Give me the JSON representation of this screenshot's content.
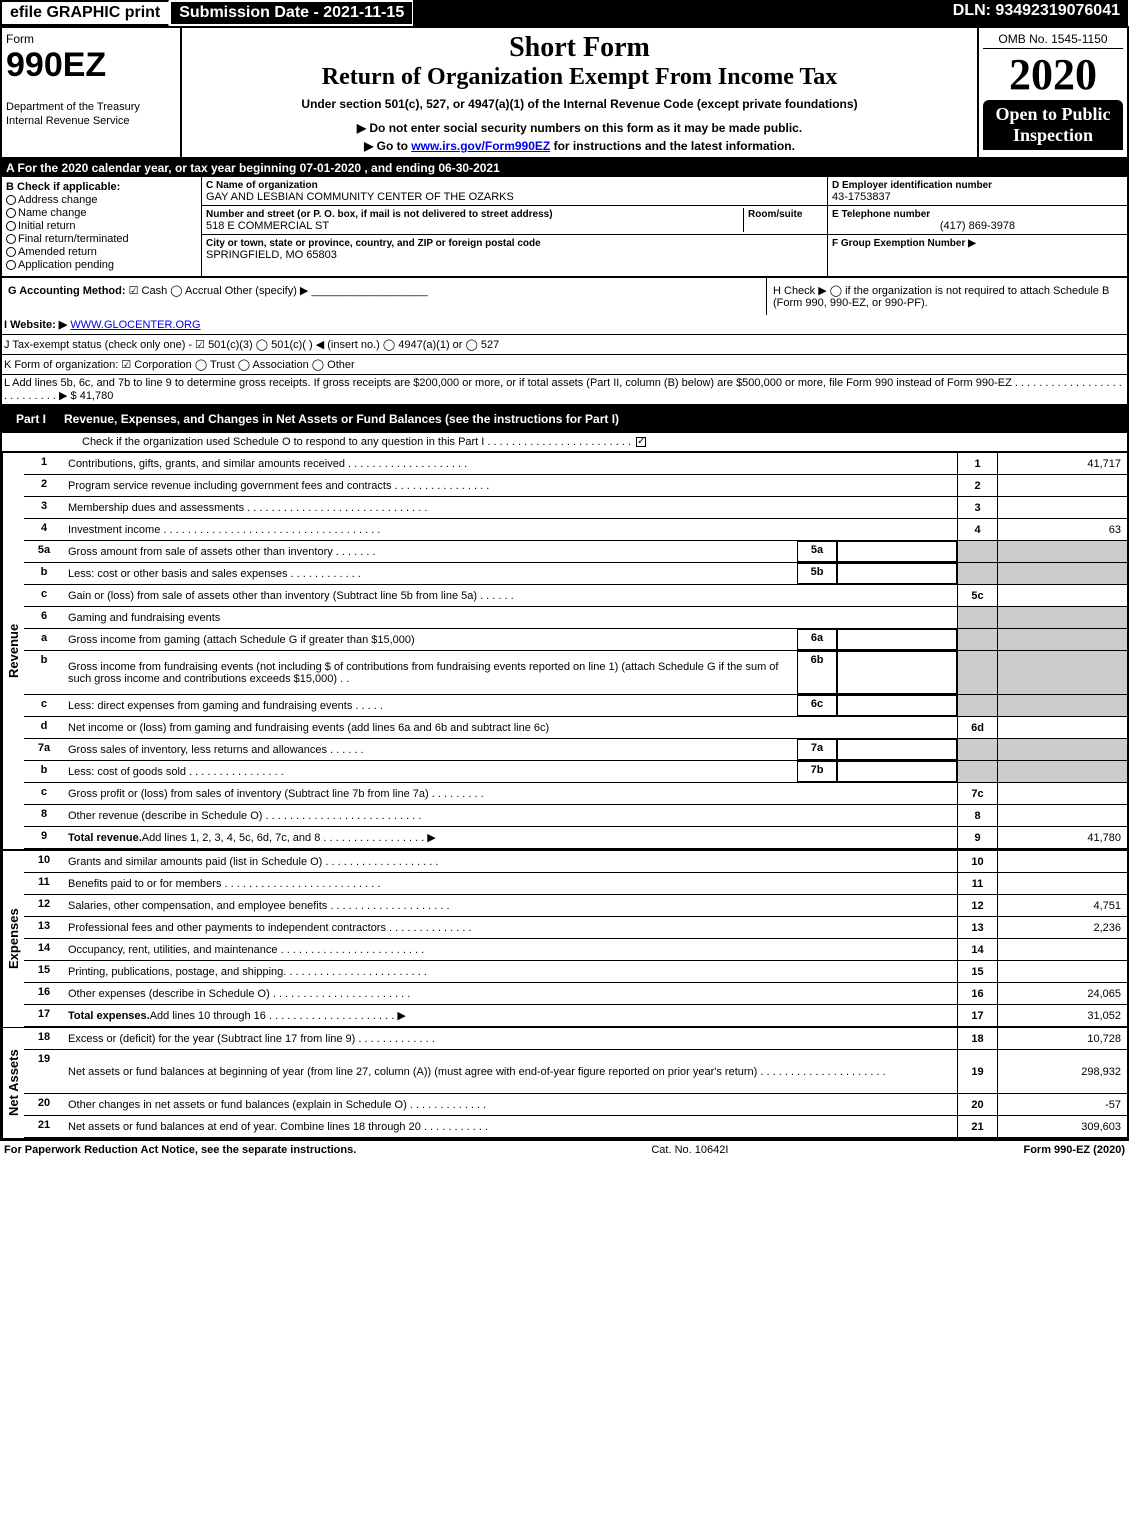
{
  "top_bar": {
    "efile": "efile GRAPHIC print",
    "submission_date": "Submission Date - 2021-11-15",
    "dln": "DLN: 93492319076041"
  },
  "header": {
    "form_label": "Form",
    "form_number": "990EZ",
    "dept": "Department of the Treasury",
    "irs": "Internal Revenue Service",
    "short_form": "Short Form",
    "title": "Return of Organization Exempt From Income Tax",
    "subtitle": "Under section 501(c), 527, or 4947(a)(1) of the Internal Revenue Code (except private foundations)",
    "notice": "▶ Do not enter social security numbers on this form as it may be made public.",
    "link_text": "▶ Go to www.irs.gov/Form990EZ for instructions and the latest information.",
    "link_url": "www.irs.gov/Form990EZ",
    "omb": "OMB No. 1545-1150",
    "year": "2020",
    "open": "Open to Public Inspection"
  },
  "tax_year": "A For the 2020 calendar year, or tax year beginning 07-01-2020 , and ending 06-30-2021",
  "section_b": {
    "label": "B Check if applicable:",
    "items": [
      "Address change",
      "Name change",
      "Initial return",
      "Final return/terminated",
      "Amended return",
      "Application pending"
    ]
  },
  "section_c": {
    "label": "C Name of organization",
    "name": "GAY AND LESBIAN COMMUNITY CENTER OF THE OZARKS",
    "street_label": "Number and street (or P. O. box, if mail is not delivered to street address)",
    "street": "518 E COMMERCIAL ST",
    "room_label": "Room/suite",
    "city_label": "City or town, state or province, country, and ZIP or foreign postal code",
    "city": "SPRINGFIELD, MO  65803"
  },
  "section_d": {
    "label": "D Employer identification number",
    "value": "43-1753837"
  },
  "section_e": {
    "label": "E Telephone number",
    "value": "(417) 869-3978"
  },
  "section_f": {
    "label": "F Group Exemption Number ▶",
    "value": ""
  },
  "section_g": {
    "label": "G Accounting Method:",
    "opts": "☑ Cash ◯ Accrual  Other (specify) ▶"
  },
  "section_h": {
    "text": "H Check ▶ ◯ if the organization is not required to attach Schedule B (Form 990, 990-EZ, or 990-PF)."
  },
  "section_i": {
    "label": "I Website: ▶",
    "value": "WWW.GLOCENTER.ORG"
  },
  "section_j": {
    "text": "J Tax-exempt status (check only one) - ☑ 501(c)(3) ◯ 501(c)(  ) ◀ (insert no.) ◯ 4947(a)(1) or ◯ 527"
  },
  "section_k": {
    "text": "K Form of organization: ☑ Corporation ◯ Trust ◯ Association ◯ Other"
  },
  "section_l": {
    "text": "L Add lines 5b, 6c, and 7b to line 9 to determine gross receipts. If gross receipts are $200,000 or more, or if total assets (Part II, column (B) below) are $500,000 or more, file Form 990 instead of Form 990-EZ .  .  .  .  .  .  .  .  .  .  .  .  .  .  .  .  .  .  .  .  .  .  .  .  .  .  .  ▶ $ 41,780"
  },
  "part1": {
    "label": "Part I",
    "title": "Revenue, Expenses, and Changes in Net Assets or Fund Balances (see the instructions for Part I)",
    "check_text": "Check if the organization used Schedule O to respond to any question in this Part I .  .  .  .  .  .  .  .  .  .  .  .  .  .  .  .  .  .  .  .  .  .  .  ."
  },
  "side_labels": {
    "revenue": "Revenue",
    "expenses": "Expenses",
    "net_assets": "Net Assets"
  },
  "lines": [
    {
      "no": "1",
      "desc": "Contributions, gifts, grants, and similar amounts received .  .  .  .  .  .  .  .  .  .  .  .  .  .  .  .  .  .  .  .",
      "rno": "1",
      "val": "41,717"
    },
    {
      "no": "2",
      "desc": "Program service revenue including government fees and contracts .  .  .  .  .  .  .  .  .  .  .  .  .  .  .  .",
      "rno": "2",
      "val": ""
    },
    {
      "no": "3",
      "desc": "Membership dues and assessments .  .  .  .  .  .  .  .  .  .  .  .  .  .  .  .  .  .  .  .  .  .  .  .  .  .  .  .  .  .",
      "rno": "3",
      "val": ""
    },
    {
      "no": "4",
      "desc": "Investment income .  .  .  .  .  .  .  .  .  .  .  .  .  .  .  .  .  .  .  .  .  .  .  .  .  .  .  .  .  .  .  .  .  .  .  .",
      "rno": "4",
      "val": "63"
    },
    {
      "no": "5a",
      "desc": "Gross amount from sale of assets other than inventory .  .  .  .  .  .  .",
      "sub_no": "5a",
      "sub_val": "",
      "shaded": true
    },
    {
      "no": "b",
      "desc": "Less: cost or other basis and sales expenses .  .  .  .  .  .  .  .  .  .  .  .",
      "sub_no": "5b",
      "sub_val": "",
      "shaded": true
    },
    {
      "no": "c",
      "desc": "Gain or (loss) from sale of assets other than inventory (Subtract line 5b from line 5a) .  .  .  .  .  .",
      "rno": "5c",
      "val": ""
    },
    {
      "no": "6",
      "desc": "Gaming and fundraising events",
      "shaded": true
    },
    {
      "no": "a",
      "desc": "Gross income from gaming (attach Schedule G if greater than $15,000)",
      "sub_no": "6a",
      "sub_val": "",
      "shaded": true
    },
    {
      "no": "b",
      "desc": "Gross income from fundraising events (not including $                                          of contributions from fundraising events reported on line 1) (attach Schedule G if the sum of such gross income and contributions exceeds $15,000)   .  .",
      "sub_no": "6b",
      "sub_val": "",
      "shaded": true,
      "multiline": true
    },
    {
      "no": "c",
      "desc": "Less: direct expenses from gaming and fundraising events   .  .  .  .  .",
      "sub_no": "6c",
      "sub_val": "",
      "shaded": true
    },
    {
      "no": "d",
      "desc": "Net income or (loss) from gaming and fundraising events (add lines 6a and 6b and subtract line 6c)",
      "rno": "6d",
      "val": ""
    },
    {
      "no": "7a",
      "desc": "Gross sales of inventory, less returns and allowances .  .  .  .  .  .",
      "sub_no": "7a",
      "sub_val": "",
      "shaded": true
    },
    {
      "no": "b",
      "desc": "Less: cost of goods sold         .  .  .  .  .  .  .  .  .  .  .  .  .  .  .  .",
      "sub_no": "7b",
      "sub_val": "",
      "shaded": true
    },
    {
      "no": "c",
      "desc": "Gross profit or (loss) from sales of inventory (Subtract line 7b from line 7a) .  .  .  .  .  .  .  .  .",
      "rno": "7c",
      "val": ""
    },
    {
      "no": "8",
      "desc": "Other revenue (describe in Schedule O) .  .  .  .  .  .  .  .  .  .  .  .  .  .  .  .  .  .  .  .  .  .  .  .  .  .",
      "rno": "8",
      "val": ""
    },
    {
      "no": "9",
      "desc": "Total revenue. Add lines 1, 2, 3, 4, 5c, 6d, 7c, and 8  .  .  .  .  .  .  .  .  .  .  .  .  .  .  .  .  .    ▶",
      "rno": "9",
      "val": "41,780",
      "bold": true
    }
  ],
  "expense_lines": [
    {
      "no": "10",
      "desc": "Grants and similar amounts paid (list in Schedule O) .  .  .  .  .  .  .  .  .  .  .  .  .  .  .  .  .  .  .",
      "rno": "10",
      "val": ""
    },
    {
      "no": "11",
      "desc": "Benefits paid to or for members        .  .  .  .  .  .  .  .  .  .  .  .  .  .  .  .  .  .  .  .  .  .  .  .  .  .",
      "rno": "11",
      "val": ""
    },
    {
      "no": "12",
      "desc": "Salaries, other compensation, and employee benefits .  .  .  .  .  .  .  .  .  .  .  .  .  .  .  .  .  .  .  .",
      "rno": "12",
      "val": "4,751"
    },
    {
      "no": "13",
      "desc": "Professional fees and other payments to independent contractors .  .  .  .  .  .  .  .  .  .  .  .  .  .",
      "rno": "13",
      "val": "2,236"
    },
    {
      "no": "14",
      "desc": "Occupancy, rent, utilities, and maintenance .  .  .  .  .  .  .  .  .  .  .  .  .  .  .  .  .  .  .  .  .  .  .  .",
      "rno": "14",
      "val": ""
    },
    {
      "no": "15",
      "desc": "Printing, publications, postage, and shipping. .  .  .  .  .  .  .  .  .  .  .  .  .  .  .  .  .  .  .  .  .  .  .",
      "rno": "15",
      "val": ""
    },
    {
      "no": "16",
      "desc": "Other expenses (describe in Schedule O)       .  .  .  .  .  .  .  .  .  .  .  .  .  .  .  .  .  .  .  .  .  .  .",
      "rno": "16",
      "val": "24,065"
    },
    {
      "no": "17",
      "desc": "Total expenses. Add lines 10 through 16       .  .  .  .  .  .  .  .  .  .  .  .  .  .  .  .  .  .  .  .  .    ▶",
      "rno": "17",
      "val": "31,052",
      "bold": true
    }
  ],
  "net_lines": [
    {
      "no": "18",
      "desc": "Excess or (deficit) for the year (Subtract line 17 from line 9)           .  .  .  .  .  .  .  .  .  .  .  .  .",
      "rno": "18",
      "val": "10,728"
    },
    {
      "no": "19",
      "desc": "Net assets or fund balances at beginning of year (from line 27, column (A)) (must agree with end-of-year figure reported on prior year's return) .  .  .  .  .  .  .  .  .  .  .  .  .  .  .  .  .  .  .  .  .",
      "rno": "19",
      "val": "298,932",
      "multiline": true
    },
    {
      "no": "20",
      "desc": "Other changes in net assets or fund balances (explain in Schedule O) .  .  .  .  .  .  .  .  .  .  .  .  .",
      "rno": "20",
      "val": "-57"
    },
    {
      "no": "21",
      "desc": "Net assets or fund balances at end of year. Combine lines 18 through 20 .  .  .  .  .  .  .  .  .  .  .",
      "rno": "21",
      "val": "309,603"
    }
  ],
  "footer": {
    "left": "For Paperwork Reduction Act Notice, see the separate instructions.",
    "center": "Cat. No. 10642I",
    "right": "Form 990-EZ (2020)"
  },
  "colors": {
    "black": "#000000",
    "white": "#ffffff",
    "shaded": "#cccccc",
    "link": "#0000ee"
  }
}
